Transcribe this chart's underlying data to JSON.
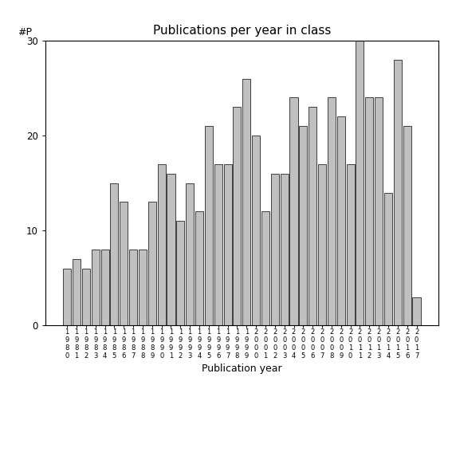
{
  "title": "Publications per year in class",
  "xlabel": "Publication year",
  "ylabel": "#P",
  "years": [
    "1980",
    "1981",
    "1982",
    "1983",
    "1984",
    "1985",
    "1986",
    "1987",
    "1988",
    "1989",
    "1990",
    "1991",
    "1992",
    "1993",
    "1994",
    "1995",
    "1996",
    "1997",
    "1998",
    "1999",
    "2000",
    "2001",
    "2002",
    "2003",
    "2004",
    "2005",
    "2006",
    "2007",
    "2008",
    "2009",
    "2010",
    "2011",
    "2012",
    "2013",
    "2014",
    "2015",
    "2016",
    "2017"
  ],
  "values": [
    6,
    7,
    6,
    8,
    8,
    15,
    13,
    8,
    8,
    13,
    17,
    16,
    11,
    15,
    12,
    21,
    17,
    17,
    23,
    26,
    20,
    12,
    16,
    16,
    24,
    21,
    23,
    17,
    24,
    22,
    17,
    30,
    24,
    24,
    14,
    28,
    21,
    3
  ],
  "bar_color": "#c0c0c0",
  "bar_edgecolor": "#000000",
  "ylim": [
    0,
    30
  ],
  "yticks": [
    0,
    10,
    20,
    30
  ],
  "background_color": "#ffffff",
  "title_fontsize": 11,
  "label_fontsize": 9,
  "tick_fontsize": 8.5,
  "xtick_fontsize": 6.0
}
